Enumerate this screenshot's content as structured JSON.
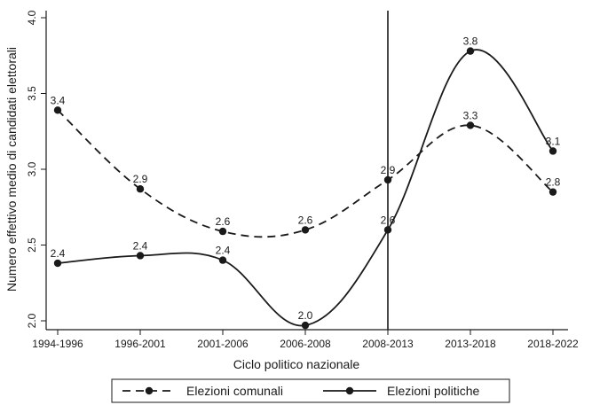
{
  "chart_data": {
    "type": "line",
    "xlabel": "Ciclo politico nazionale",
    "ylabel": "Numero effettivo medio di candidati elettorali",
    "categories": [
      "1994-1996",
      "1996-2001",
      "2001-2006",
      "2006-2008",
      "2008-2013",
      "2013-2018",
      "2018-2022"
    ],
    "ylim": [
      2.0,
      4.0
    ],
    "yticks": [
      "2.0",
      "2.5",
      "3.0",
      "3.5",
      "4.0"
    ],
    "grid": false,
    "vertical_reference_line": "2008-2013",
    "legend_position": "bottom",
    "series": [
      {
        "name": "Elezioni comunali",
        "style": "dashed",
        "color": "#1a1a1a",
        "values": [
          3.39,
          2.87,
          2.59,
          2.6,
          2.93,
          3.29,
          2.85
        ],
        "labels": [
          "3.4",
          "2.9",
          "2.6",
          "2.6",
          "2.9",
          "3.3",
          "2.8"
        ]
      },
      {
        "name": "Elezioni politiche",
        "style": "solid",
        "color": "#1a1a1a",
        "values": [
          2.38,
          2.43,
          2.4,
          1.97,
          2.6,
          3.78,
          3.12
        ],
        "labels": [
          "2.4",
          "2.4",
          "2.4",
          "2.0",
          "2.6",
          "3.8",
          "3.1"
        ]
      }
    ]
  }
}
